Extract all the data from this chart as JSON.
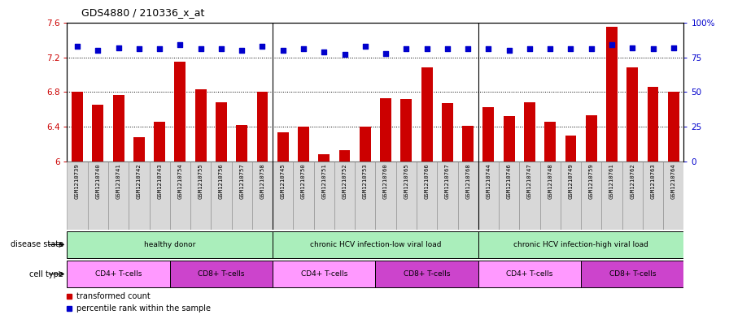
{
  "title": "GDS4880 / 210336_x_at",
  "samples": [
    "GSM1210739",
    "GSM1210740",
    "GSM1210741",
    "GSM1210742",
    "GSM1210743",
    "GSM1210754",
    "GSM1210755",
    "GSM1210756",
    "GSM1210757",
    "GSM1210758",
    "GSM1210745",
    "GSM1210750",
    "GSM1210751",
    "GSM1210752",
    "GSM1210753",
    "GSM1210760",
    "GSM1210765",
    "GSM1210766",
    "GSM1210767",
    "GSM1210768",
    "GSM1210744",
    "GSM1210746",
    "GSM1210747",
    "GSM1210748",
    "GSM1210749",
    "GSM1210759",
    "GSM1210761",
    "GSM1210762",
    "GSM1210763",
    "GSM1210764"
  ],
  "bar_values": [
    6.8,
    6.65,
    6.77,
    6.28,
    6.46,
    7.15,
    6.83,
    6.68,
    6.42,
    6.8,
    6.34,
    6.4,
    6.08,
    6.13,
    6.4,
    6.73,
    6.72,
    7.08,
    6.67,
    6.41,
    6.63,
    6.52,
    6.68,
    6.46,
    6.3,
    6.53,
    7.55,
    7.08,
    6.86,
    6.8
  ],
  "percentile_values": [
    83,
    80,
    82,
    81,
    81,
    84,
    81,
    81,
    80,
    83,
    80,
    81,
    79,
    77,
    83,
    78,
    81,
    81,
    81,
    81,
    81,
    80,
    81,
    81,
    81,
    81,
    84,
    82,
    81,
    82
  ],
  "bar_color": "#cc0000",
  "percentile_color": "#0000cc",
  "ylim_left": [
    6.0,
    7.6
  ],
  "ylim_right": [
    0,
    100
  ],
  "yticks_left": [
    6.0,
    6.4,
    6.8,
    7.2,
    7.6
  ],
  "ytick_labels_left": [
    "6",
    "6.4",
    "6.8",
    "7.2",
    "7.6"
  ],
  "yticks_right": [
    0,
    25,
    50,
    75,
    100
  ],
  "ytick_labels_right": [
    "0",
    "25",
    "50",
    "75",
    "100%"
  ],
  "disease_groups": [
    {
      "label": "healthy donor",
      "start": 0,
      "end": 9
    },
    {
      "label": "chronic HCV infection-low viral load",
      "start": 10,
      "end": 19
    },
    {
      "label": "chronic HCV infection-high viral load",
      "start": 20,
      "end": 29
    }
  ],
  "cell_groups": [
    {
      "label": "CD4+ T-cells",
      "start": 0,
      "end": 4,
      "color": "#ff99ff"
    },
    {
      "label": "CD8+ T-cells",
      "start": 5,
      "end": 9,
      "color": "#cc44cc"
    },
    {
      "label": "CD4+ T-cells",
      "start": 10,
      "end": 14,
      "color": "#ff99ff"
    },
    {
      "label": "CD8+ T-cells",
      "start": 15,
      "end": 19,
      "color": "#cc44cc"
    },
    {
      "label": "CD4+ T-cells",
      "start": 20,
      "end": 24,
      "color": "#ff99ff"
    },
    {
      "label": "CD8+ T-cells",
      "start": 25,
      "end": 29,
      "color": "#cc44cc"
    }
  ],
  "disease_color": "#aaeebb",
  "disease_state_label": "disease state",
  "cell_type_label": "cell type",
  "legend_bar": "transformed count",
  "legend_dot": "percentile rank within the sample",
  "sample_bg_color": "#d8d8d8",
  "plot_bg": "#ffffff"
}
